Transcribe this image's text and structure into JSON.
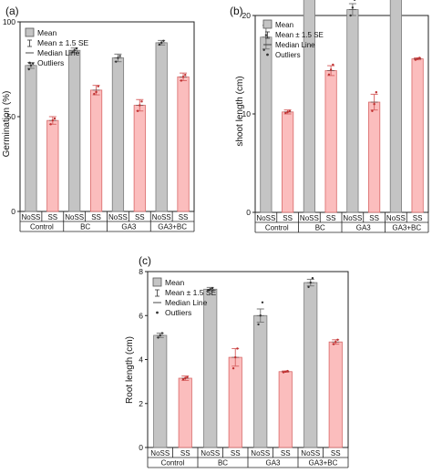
{
  "colors": {
    "nosalt_fill": "#c4c4c4",
    "nosalt_stroke": "#7a7a7a",
    "salt_fill": "#fbbdbd",
    "salt_stroke": "#d96868",
    "axis": "#222222"
  },
  "legend_labels": {
    "mean": "Mean",
    "se": "Mean ± 1.5 SE",
    "median": "Median Line",
    "outliers": "Outliers"
  },
  "chart_data": [
    {
      "panel": "(a)",
      "type": "bar",
      "ylabel": "Germination (%)",
      "ylim": [
        0,
        100
      ],
      "yticks": [
        0,
        50,
        100
      ],
      "legend_position": "top-left",
      "groups": [
        "Control",
        "BC",
        "GA3",
        "GA3+BC"
      ],
      "sublabels": [
        "NoSS",
        "SS"
      ],
      "values": [
        77,
        48,
        85,
        64,
        81,
        56,
        89,
        71
      ],
      "errors": [
        1.5,
        2,
        1.2,
        2.5,
        2,
        3,
        1.2,
        2
      ],
      "points": [
        [
          75,
          77,
          78
        ],
        [
          46,
          48,
          49
        ],
        [
          84,
          85,
          86
        ],
        [
          62,
          63,
          66
        ],
        [
          79,
          81,
          82
        ],
        [
          53,
          56,
          58
        ],
        [
          88,
          89,
          90
        ],
        [
          69,
          71,
          72
        ]
      ]
    },
    {
      "panel": "(b)",
      "type": "bar",
      "ylabel": "shoot length (cm)",
      "ylim": [
        0,
        20
      ],
      "yticks": [
        0,
        10,
        20
      ],
      "legend_position": "top-left",
      "groups": [
        "Control",
        "BC",
        "GA3",
        "GA3+BC"
      ],
      "sublabels": [
        "NoSS",
        "SS"
      ],
      "values": [
        17.8,
        10.2,
        23.6,
        14.4,
        20.6,
        11.2,
        24.3,
        15.6
      ],
      "errors": [
        1.2,
        0.2,
        0.8,
        0.5,
        0.6,
        0.8,
        0.1,
        0.1
      ],
      "points": [
        [
          16.5,
          18,
          19
        ],
        [
          10.1,
          10.2,
          10.3
        ],
        [
          23,
          23.5,
          24.5
        ],
        [
          14,
          14.5,
          15
        ],
        [
          20,
          20.8,
          21.6
        ],
        [
          10.3,
          11,
          12.2
        ],
        [
          24.2,
          24.3,
          24.4
        ],
        [
          15.5,
          15.6,
          15.7
        ]
      ]
    },
    {
      "panel": "(c)",
      "type": "bar",
      "ylabel": "Root length (cm)",
      "ylim": [
        0,
        8
      ],
      "yticks": [
        0,
        2,
        4,
        6,
        8
      ],
      "legend_position": "top-left",
      "groups": [
        "Control",
        "BC",
        "GA3",
        "GA3+BC"
      ],
      "sublabels": [
        "NoSS",
        "SS"
      ],
      "values": [
        5.1,
        3.15,
        7.2,
        4.1,
        6.0,
        3.45,
        7.5,
        4.8
      ],
      "errors": [
        0.1,
        0.1,
        0.08,
        0.4,
        0.3,
        0.03,
        0.15,
        0.1
      ],
      "points": [
        [
          5.0,
          5.1,
          5.2
        ],
        [
          3.1,
          3.15,
          3.2
        ],
        [
          7.15,
          7.2,
          7.25
        ],
        [
          3.6,
          4.1,
          4.5
        ],
        [
          5.6,
          6.0,
          6.6
        ],
        [
          3.42,
          3.45,
          3.48
        ],
        [
          7.3,
          7.5,
          7.7
        ],
        [
          4.7,
          4.8,
          4.9
        ]
      ]
    }
  ]
}
